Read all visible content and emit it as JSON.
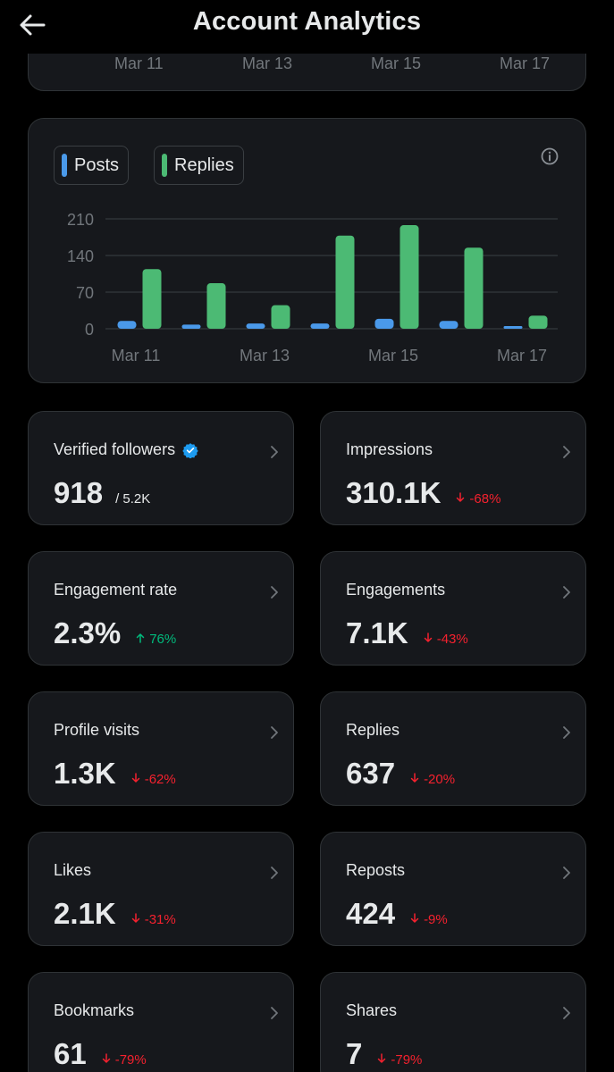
{
  "header": {
    "title": "Account Analytics"
  },
  "top_card": {
    "ticks": [
      "Mar 11",
      "Mar 13",
      "Mar 15",
      "Mar 17"
    ]
  },
  "legend": [
    {
      "label": "Posts",
      "color": "#4a99e9"
    },
    {
      "label": "Replies",
      "color": "#4cba74"
    }
  ],
  "chart_data": {
    "type": "bar",
    "categories": [
      "Mar 11",
      "Mar 12",
      "Mar 13",
      "Mar 14",
      "Mar 15",
      "Mar 16",
      "Mar 17"
    ],
    "x_tick_labels": [
      "Mar 11",
      "Mar 13",
      "Mar 15",
      "Mar 17"
    ],
    "series": [
      {
        "name": "Posts",
        "color": "#4a99e9",
        "values": [
          15,
          8,
          10,
          10,
          19,
          15,
          3
        ]
      },
      {
        "name": "Replies",
        "color": "#4cba74",
        "values": [
          114,
          87,
          45,
          178,
          198,
          155,
          25
        ]
      }
    ],
    "yticks": [
      0,
      70,
      140,
      210
    ],
    "ylim": [
      0,
      210
    ],
    "grid": true
  },
  "stats": [
    {
      "label": "Verified followers",
      "value": "918",
      "sub": "/ 5.2K",
      "verified": true
    },
    {
      "label": "Impressions",
      "value": "310.1K",
      "change": "-68%",
      "direction": "down"
    },
    {
      "label": "Engagement rate",
      "value": "2.3%",
      "change": "76%",
      "direction": "up"
    },
    {
      "label": "Engagements",
      "value": "7.1K",
      "change": "-43%",
      "direction": "down"
    },
    {
      "label": "Profile visits",
      "value": "1.3K",
      "change": "-62%",
      "direction": "down"
    },
    {
      "label": "Replies",
      "value": "637",
      "change": "-20%",
      "direction": "down"
    },
    {
      "label": "Likes",
      "value": "2.1K",
      "change": "-31%",
      "direction": "down"
    },
    {
      "label": "Reposts",
      "value": "424",
      "change": "-9%",
      "direction": "down"
    },
    {
      "label": "Bookmarks",
      "value": "61",
      "change": "-79%",
      "direction": "down"
    },
    {
      "label": "Shares",
      "value": "7",
      "change": "-79%",
      "direction": "down"
    }
  ],
  "colors": {
    "background": "#000000",
    "card": "#16181c",
    "border": "#2f3336",
    "muted": "#71767b",
    "down": "#f4212e",
    "up": "#00ba7c",
    "verified": "#1d9bf0"
  }
}
